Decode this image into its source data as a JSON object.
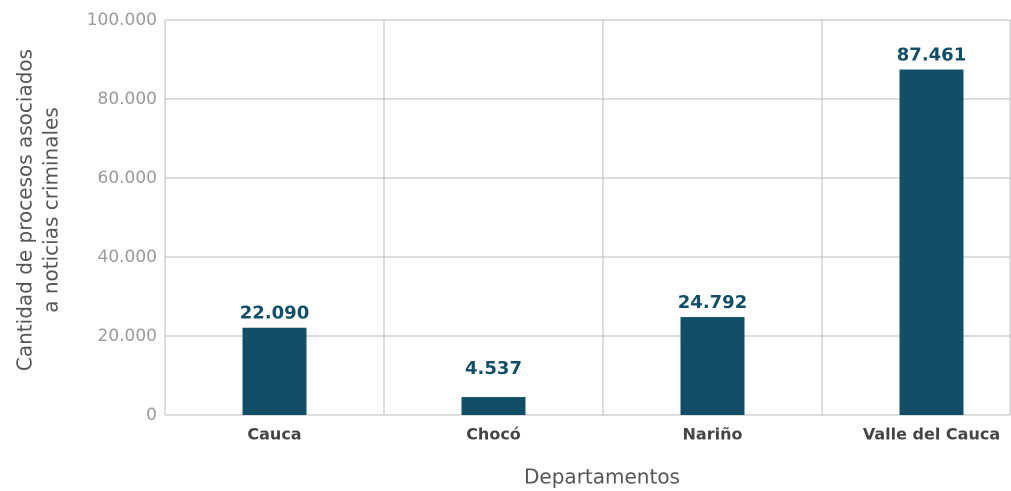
{
  "chart_data": {
    "type": "bar",
    "ylabel": [
      "Cantidad de procesos asociados",
      "a noticias criminales"
    ],
    "xlabel": "Departamentos",
    "categories": [
      "Cauca",
      "Chocó",
      "Nariño",
      "Valle del Cauca"
    ],
    "values": [
      22090,
      4537,
      24792,
      87461
    ],
    "value_labels": [
      "22.090",
      "4.537",
      "24.792",
      "87.461"
    ],
    "color": "#124e68",
    "ylim": [
      0,
      100000
    ],
    "yticks": [
      0,
      {
        "value": 20000,
        "label": "20.000"
      },
      {
        "value": 40000,
        "label": "40.000"
      },
      {
        "value": 60000,
        "label": "60.000"
      },
      {
        "value": 80000,
        "label": "80.000"
      },
      {
        "value": 100000,
        "label": "100.000"
      }
    ],
    "grid": true
  }
}
